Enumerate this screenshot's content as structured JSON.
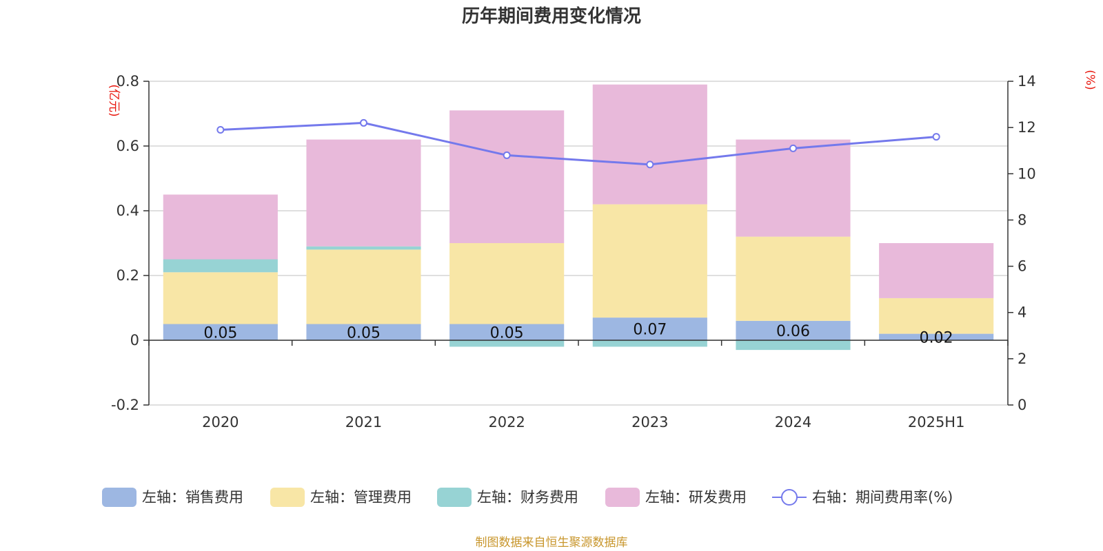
{
  "chart_data": {
    "type": "bar",
    "title": "历年期间费用变化情况",
    "categories": [
      "2020",
      "2021",
      "2022",
      "2023",
      "2024",
      "2025H1"
    ],
    "left_axis": {
      "unit": "(亿元)",
      "ylim": [
        -0.2,
        0.8
      ],
      "ticks": [
        "-0.2",
        "0",
        "0.2",
        "0.4",
        "0.6",
        "0.8"
      ]
    },
    "right_axis": {
      "unit": "(%)",
      "ylim": [
        0,
        14
      ],
      "ticks": [
        "0",
        "2",
        "4",
        "6",
        "8",
        "10",
        "12",
        "14"
      ]
    },
    "series": [
      {
        "name": "左轴：销售费用",
        "type": "bar",
        "color": "#9db7e2",
        "values": [
          0.05,
          0.05,
          0.05,
          0.07,
          0.06,
          0.02
        ],
        "labels": [
          "0.05",
          "0.05",
          "0.05",
          "0.07",
          "0.06",
          "0.02"
        ]
      },
      {
        "name": "左轴：管理费用",
        "type": "bar",
        "color": "#f8e6a6",
        "values": [
          0.16,
          0.23,
          0.25,
          0.35,
          0.26,
          0.11
        ]
      },
      {
        "name": "左轴：财务费用",
        "type": "bar",
        "color": "#97d3d4",
        "values": [
          0.04,
          0.01,
          -0.02,
          -0.02,
          -0.03,
          0.0
        ]
      },
      {
        "name": "左轴：研发费用",
        "type": "bar",
        "color": "#e8b9da",
        "values": [
          0.2,
          0.33,
          0.41,
          0.37,
          0.3,
          0.17
        ]
      },
      {
        "name": "右轴：期间费用率(%)",
        "type": "line",
        "color": "#7479ec",
        "values": [
          11.9,
          12.2,
          10.8,
          10.4,
          11.1,
          11.6
        ]
      }
    ],
    "grid": true,
    "legend": "bottom"
  },
  "source": "制图数据来自恒生聚源数据库"
}
